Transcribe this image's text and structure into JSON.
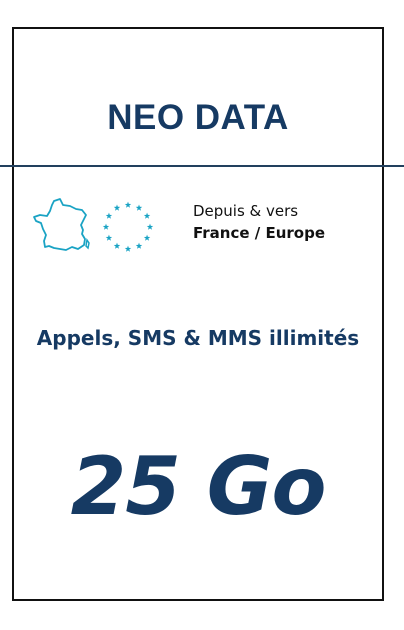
{
  "plan": {
    "name": "NEO DATA"
  },
  "zone": {
    "intro": "Depuis & vers",
    "name": "France / Europe",
    "icons": [
      "france-map-icon",
      "eu-stars-icon"
    ]
  },
  "features": {
    "text": "Appels, SMS & MMS illimités"
  },
  "data": {
    "amount": "25 Go"
  },
  "colors": {
    "brand": "#163a63",
    "icon_accent": "#1aa3c4",
    "divider": "#22405e",
    "text": "#111111"
  }
}
